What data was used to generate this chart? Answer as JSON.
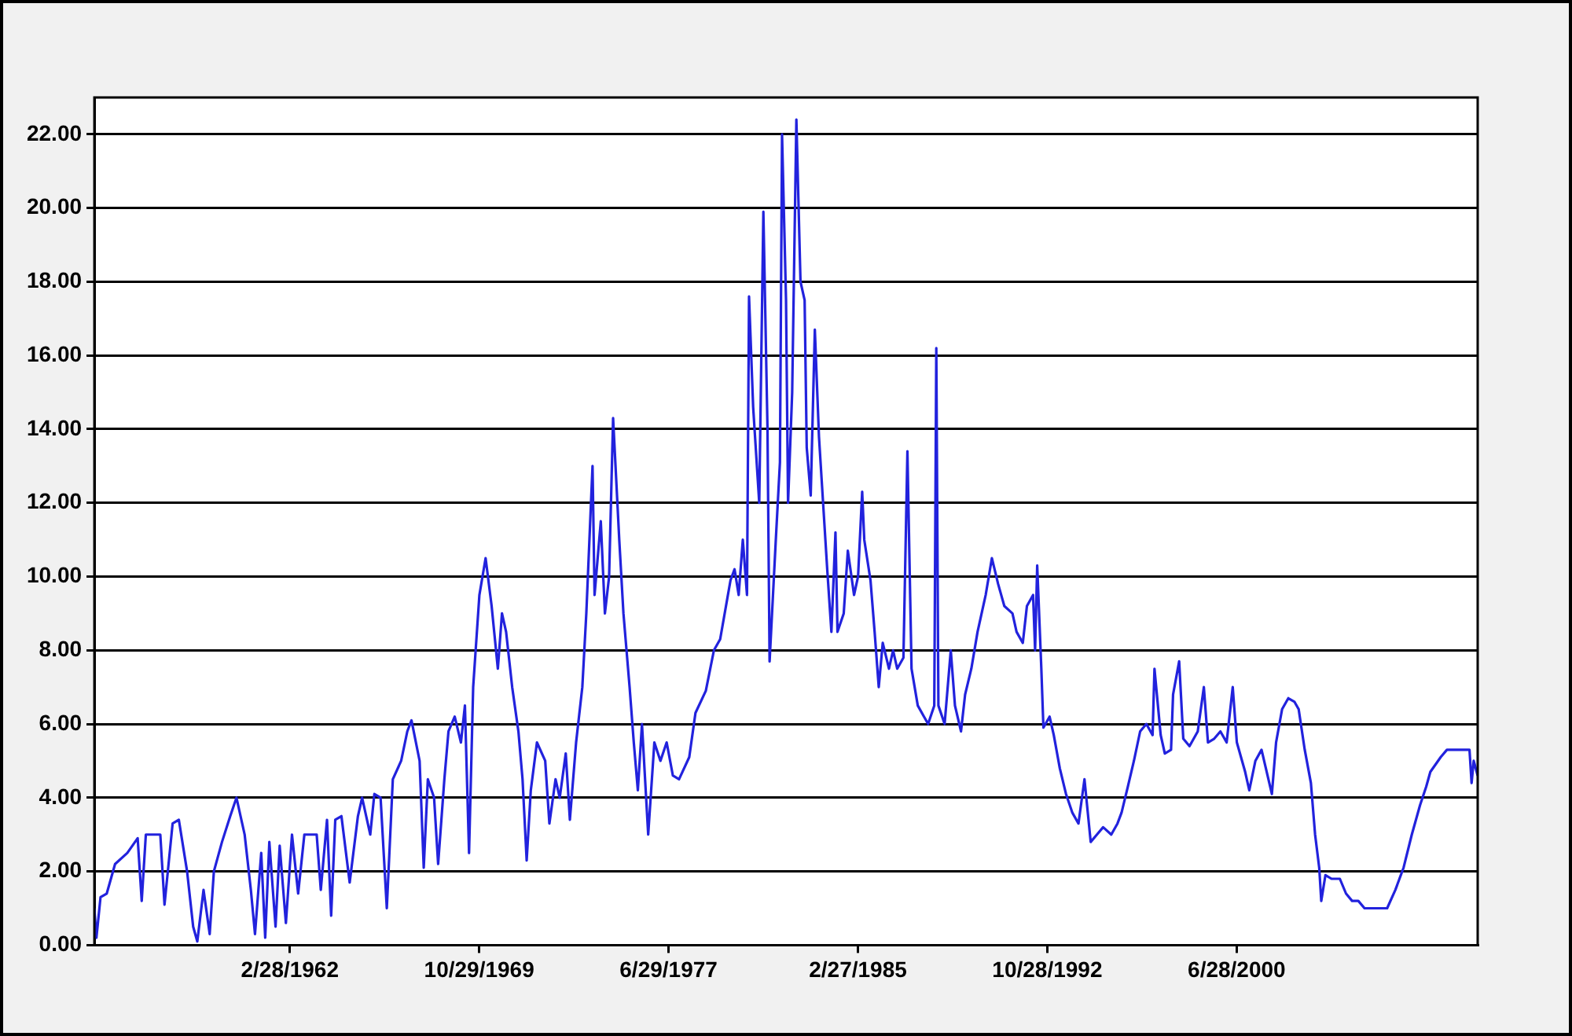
{
  "chart_data": {
    "type": "line",
    "marker": "none",
    "grid": "y",
    "legend": false,
    "xlim": [
      "1954-04",
      "2010-04"
    ],
    "xticks": [
      {
        "value": "1962-02-28",
        "label": "2/28/1962"
      },
      {
        "value": "1969-10-29",
        "label": "10/29/1969"
      },
      {
        "value": "1977-06-29",
        "label": "6/29/1977"
      },
      {
        "value": "1985-02-27",
        "label": "2/27/1985"
      },
      {
        "value": "1992-10-28",
        "label": "10/28/1992"
      },
      {
        "value": "2000-06-28",
        "label": "6/28/2000"
      }
    ],
    "ylim": [
      0,
      23
    ],
    "yticks": [
      {
        "value": 0,
        "label": "0.00"
      },
      {
        "value": 2,
        "label": "2.00"
      },
      {
        "value": 4,
        "label": "4.00"
      },
      {
        "value": 6,
        "label": "6.00"
      },
      {
        "value": 8,
        "label": "8.00"
      },
      {
        "value": 10,
        "label": "10.00"
      },
      {
        "value": 12,
        "label": "12.00"
      },
      {
        "value": 14,
        "label": "14.00"
      },
      {
        "value": 16,
        "label": "16.00"
      },
      {
        "value": 18,
        "label": "18.00"
      },
      {
        "value": 20,
        "label": "20.00"
      },
      {
        "value": 22,
        "label": "22.00"
      }
    ],
    "series": [
      {
        "color": "#2222dd",
        "x": [
          "1954-04",
          "1954-05",
          "1954-07",
          "1954-10",
          "1955-02",
          "1955-08",
          "1956-01",
          "1956-03",
          "1956-05",
          "1956-12",
          "1957-02",
          "1957-06",
          "1957-09",
          "1958-01",
          "1958-04",
          "1958-06",
          "1958-09",
          "1958-12",
          "1959-02",
          "1959-06",
          "1959-10",
          "1960-01",
          "1960-05",
          "1960-08",
          "1960-10",
          "1961-01",
          "1961-03",
          "1961-05",
          "1961-08",
          "1961-10",
          "1962-01",
          "1962-04",
          "1962-07",
          "1962-10",
          "1963-04",
          "1963-06",
          "1963-09",
          "1963-11",
          "1964-01",
          "1964-04",
          "1964-08",
          "1964-12",
          "1965-02",
          "1965-06",
          "1965-08",
          "1965-11",
          "1966-02",
          "1966-05",
          "1966-09",
          "1966-12",
          "1967-02",
          "1967-06",
          "1967-08",
          "1967-10",
          "1968-01",
          "1968-03",
          "1968-06",
          "1968-08",
          "1968-11",
          "1969-02",
          "1969-04",
          "1969-06",
          "1969-08",
          "1969-11",
          "1970-02",
          "1970-05",
          "1970-08",
          "1970-10",
          "1970-12",
          "1971-03",
          "1971-06",
          "1971-08",
          "1971-10",
          "1971-12",
          "1972-03",
          "1972-07",
          "1972-09",
          "1972-12",
          "1973-02",
          "1973-05",
          "1973-07",
          "1973-10",
          "1974-01",
          "1974-03",
          "1974-06",
          "1974-07",
          "1974-10",
          "1974-12",
          "1975-02",
          "1975-04",
          "1975-07",
          "1975-09",
          "1975-12",
          "1976-02",
          "1976-04",
          "1976-06",
          "1976-09",
          "1976-12",
          "1977-03",
          "1977-06",
          "1977-09",
          "1977-12",
          "1978-05",
          "1978-08",
          "1979-01",
          "1979-05",
          "1979-08",
          "1980-01",
          "1980-03",
          "1980-05",
          "1980-07",
          "1980-09",
          "1980-10",
          "1980-12",
          "1981-03",
          "1981-05",
          "1981-07",
          "1981-08",
          "1981-11",
          "1982-01",
          "1982-02",
          "1982-04",
          "1982-05",
          "1982-07",
          "1982-09",
          "1982-11",
          "1983-01",
          "1983-02",
          "1983-04",
          "1983-06",
          "1983-08",
          "1983-10",
          "1983-12",
          "1984-02",
          "1984-04",
          "1984-05",
          "1984-08",
          "1984-10",
          "1985-01",
          "1985-03",
          "1985-05",
          "1985-06",
          "1985-09",
          "1985-11",
          "1986-01",
          "1986-03",
          "1986-06",
          "1986-08",
          "1986-10",
          "1987-01",
          "1987-03",
          "1987-05",
          "1987-08",
          "1987-11",
          "1988-01",
          "1988-04",
          "1988-05",
          "1988-06",
          "1988-09",
          "1988-12",
          "1989-02",
          "1989-05",
          "1989-07",
          "1989-10",
          "1990-01",
          "1990-05",
          "1990-08",
          "1990-11",
          "1991-02",
          "1991-06",
          "1991-08",
          "1991-11",
          "1992-01",
          "1992-04",
          "1992-05",
          "1992-06",
          "1992-08",
          "1992-09",
          "1992-12",
          "1993-02",
          "1993-05",
          "1993-08",
          "1993-11",
          "1994-02",
          "1994-05",
          "1994-08",
          "1994-11",
          "1995-02",
          "1995-06",
          "1995-09",
          "1995-11",
          "1996-02",
          "1996-05",
          "1996-08",
          "1996-11",
          "1997-02",
          "1997-03",
          "1997-06",
          "1997-08",
          "1997-11",
          "1997-12",
          "1998-03",
          "1998-05",
          "1998-08",
          "1998-12",
          "1999-03",
          "1999-05",
          "1999-08",
          "1999-11",
          "2000-02",
          "2000-05",
          "2000-07",
          "2000-11",
          "2001-01",
          "2001-04",
          "2001-07",
          "2001-12",
          "2002-02",
          "2002-05",
          "2002-08",
          "2002-11",
          "2003-01",
          "2003-04",
          "2003-07",
          "2003-09",
          "2003-11",
          "2003-12",
          "2004-02",
          "2004-05",
          "2004-09",
          "2004-12",
          "2005-03",
          "2005-06",
          "2005-09",
          "2006-02",
          "2006-08",
          "2006-12",
          "2007-04",
          "2007-08",
          "2007-12",
          "2008-03",
          "2008-05",
          "2008-10",
          "2009-01",
          "2009-07",
          "2009-12",
          "2010-01",
          "2010-02",
          "2010-04"
        ],
        "values": [
          1.0,
          0.2,
          1.3,
          1.4,
          2.2,
          2.5,
          2.9,
          1.2,
          3.0,
          3.0,
          1.1,
          3.3,
          3.4,
          2.0,
          0.5,
          0.1,
          1.5,
          0.3,
          2.0,
          2.8,
          3.5,
          4.0,
          3.0,
          1.5,
          0.3,
          2.5,
          0.2,
          2.8,
          0.5,
          2.7,
          0.6,
          3.0,
          1.4,
          3.0,
          3.0,
          1.5,
          3.4,
          0.8,
          3.4,
          3.5,
          1.7,
          3.5,
          4.0,
          3.0,
          4.1,
          4.0,
          1.0,
          4.5,
          5.0,
          5.8,
          6.1,
          5.0,
          2.1,
          4.5,
          4.0,
          2.2,
          4.5,
          5.8,
          6.2,
          5.5,
          6.5,
          2.5,
          7.0,
          9.5,
          10.5,
          9.2,
          7.5,
          9.0,
          8.5,
          7.0,
          5.8,
          4.5,
          2.3,
          4.2,
          5.5,
          5.0,
          3.3,
          4.5,
          4.0,
          5.2,
          3.4,
          5.5,
          7.0,
          9.0,
          13.0,
          9.5,
          11.5,
          9.0,
          10.0,
          14.3,
          11.0,
          9.0,
          7.0,
          5.5,
          4.2,
          6.0,
          3.0,
          5.5,
          5.0,
          5.5,
          4.6,
          4.5,
          5.1,
          6.3,
          6.9,
          8.0,
          8.3,
          9.9,
          10.2,
          9.5,
          11.0,
          9.5,
          17.6,
          14.6,
          12.0,
          19.9,
          14.0,
          7.7,
          11.0,
          13.1,
          22.0,
          17.5,
          12.0,
          15.0,
          22.4,
          18.0,
          17.5,
          13.5,
          12.2,
          16.7,
          13.8,
          12.0,
          10.2,
          8.5,
          11.2,
          8.5,
          9.0,
          10.7,
          9.5,
          10.0,
          12.3,
          11.0,
          9.9,
          8.5,
          7.0,
          8.2,
          7.5,
          8.0,
          7.5,
          7.8,
          13.4,
          7.5,
          6.5,
          6.2,
          6.0,
          6.5,
          16.2,
          6.5,
          6.0,
          8.0,
          6.5,
          5.8,
          6.8,
          7.5,
          8.5,
          9.5,
          10.5,
          9.8,
          9.2,
          9.0,
          8.5,
          8.2,
          9.2,
          9.5,
          8.0,
          10.3,
          7.5,
          5.9,
          6.2,
          5.7,
          4.8,
          4.1,
          3.6,
          3.3,
          4.5,
          2.8,
          3.0,
          3.2,
          3.0,
          3.3,
          3.6,
          4.3,
          5.0,
          5.8,
          6.0,
          5.7,
          7.5,
          5.7,
          5.2,
          5.3,
          6.8,
          7.7,
          5.6,
          5.4,
          5.8,
          7.0,
          5.5,
          5.6,
          5.8,
          5.5,
          7.0,
          5.5,
          4.7,
          4.2,
          5.0,
          5.3,
          4.1,
          5.5,
          6.4,
          6.7,
          6.6,
          6.4,
          5.3,
          4.4,
          3.0,
          2.1,
          1.2,
          1.9,
          1.8,
          1.8,
          1.4,
          1.2,
          1.2,
          1.0,
          1.0,
          1.0,
          1.5,
          2.1,
          3.0,
          3.8,
          4.3,
          4.7,
          5.1,
          5.3,
          5.3,
          5.3,
          4.4,
          5.0,
          4.6
        ]
      }
    ]
  }
}
